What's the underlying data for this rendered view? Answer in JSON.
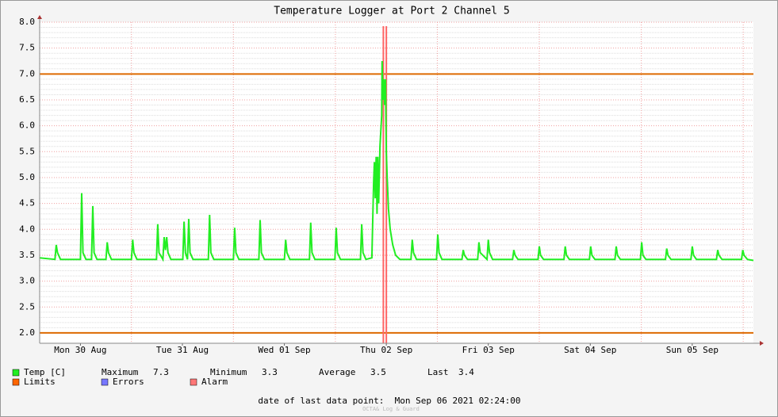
{
  "chart_data": {
    "type": "line",
    "title": "Temperature Logger at Port 2 Channel 5",
    "x": [
      2.4,
      6.0,
      6.3,
      6.6,
      7.3,
      12.0,
      12.3,
      12.6,
      13.3,
      14.6,
      14.9,
      15.2,
      15.9,
      18.0,
      18.3,
      18.6,
      19.3,
      24.0,
      24.3,
      24.6,
      25.3,
      29.9,
      30.2,
      30.5,
      31.4,
      31.7,
      32.0,
      32.3,
      32.6,
      33.3,
      36.1,
      36.4,
      36.7,
      37.2,
      37.5,
      37.8,
      38.5,
      42.1,
      42.4,
      42.7,
      43.4,
      48.0,
      48.3,
      48.6,
      49.3,
      54.0,
      54.3,
      54.6,
      55.3,
      60.0,
      60.3,
      60.6,
      61.3,
      65.9,
      66.2,
      66.5,
      67.2,
      71.9,
      72.2,
      72.5,
      73.2,
      77.9,
      78.2,
      78.5,
      79.2,
      80.6,
      81.0,
      81.2,
      81.4,
      81.6,
      81.8,
      82.0,
      82.2,
      82.5,
      82.9,
      83.0,
      83.2,
      83.4,
      83.6,
      83.8,
      84.0,
      84.2,
      84.5,
      84.9,
      85.5,
      86.2,
      87.2,
      89.8,
      90.1,
      90.4,
      91.1,
      95.8,
      96.1,
      96.4,
      97.1,
      101.8,
      102.1,
      102.4,
      103.1,
      105.5,
      105.8,
      106.1,
      107.7,
      108.0,
      108.3,
      109.0,
      113.7,
      114.0,
      114.3,
      115.0,
      119.7,
      120.0,
      120.3,
      121.0,
      125.8,
      126.1,
      126.4,
      127.1,
      131.8,
      132.1,
      132.4,
      133.1,
      137.8,
      138.1,
      138.4,
      139.1,
      143.8,
      144.1,
      144.4,
      145.1,
      149.7,
      150.0,
      150.3,
      151.0,
      155.7,
      156.0,
      156.3,
      157.0,
      161.7,
      162.0,
      162.3,
      163.0,
      167.6,
      167.9,
      168.2,
      169.0,
      170.4
    ],
    "series": [
      {
        "name": "Temp [C]",
        "color": "#22ee22",
        "values": [
          3.45,
          3.42,
          3.7,
          3.55,
          3.42,
          3.42,
          4.7,
          3.55,
          3.42,
          3.42,
          4.45,
          3.55,
          3.42,
          3.42,
          3.75,
          3.55,
          3.42,
          3.42,
          3.8,
          3.55,
          3.42,
          3.42,
          4.1,
          3.55,
          3.42,
          3.85,
          3.6,
          3.85,
          3.55,
          3.42,
          3.42,
          4.15,
          3.55,
          3.42,
          4.2,
          3.55,
          3.42,
          3.42,
          4.28,
          3.55,
          3.42,
          3.42,
          4.03,
          3.55,
          3.42,
          3.42,
          4.18,
          3.55,
          3.42,
          3.42,
          3.8,
          3.55,
          3.42,
          3.42,
          4.13,
          3.55,
          3.42,
          3.42,
          4.03,
          3.55,
          3.42,
          3.42,
          4.1,
          3.55,
          3.42,
          3.45,
          4.9,
          5.3,
          4.6,
          5.4,
          4.3,
          5.4,
          4.5,
          5.6,
          6.2,
          7.25,
          6.5,
          6.9,
          6.4,
          6.9,
          5.5,
          5.0,
          4.4,
          4.0,
          3.7,
          3.5,
          3.42,
          3.42,
          3.8,
          3.55,
          3.42,
          3.42,
          3.9,
          3.55,
          3.42,
          3.42,
          3.6,
          3.5,
          3.42,
          3.42,
          3.75,
          3.55,
          3.42,
          3.8,
          3.55,
          3.42,
          3.42,
          3.6,
          3.5,
          3.42,
          3.42,
          3.67,
          3.5,
          3.42,
          3.42,
          3.67,
          3.5,
          3.42,
          3.42,
          3.67,
          3.5,
          3.42,
          3.42,
          3.67,
          3.5,
          3.42,
          3.42,
          3.75,
          3.5,
          3.42,
          3.42,
          3.63,
          3.5,
          3.42,
          3.42,
          3.67,
          3.5,
          3.42,
          3.42,
          3.6,
          3.5,
          3.42,
          3.42,
          3.6,
          3.5,
          3.42,
          3.4
        ]
      }
    ],
    "xlim": [
      2.4,
      170.4
    ],
    "xticks": [
      {
        "value": 12,
        "label": "Mon 30 Aug"
      },
      {
        "value": 36,
        "label": "Tue 31 Aug"
      },
      {
        "value": 60,
        "label": "Wed 01 Sep"
      },
      {
        "value": 84,
        "label": "Thu 02 Sep"
      },
      {
        "value": 108,
        "label": "Fri 03 Sep"
      },
      {
        "value": 132,
        "label": "Sat 04 Sep"
      },
      {
        "value": 156,
        "label": "Sun 05 Sep"
      }
    ],
    "xgrid": [
      24,
      48,
      72,
      96,
      120,
      144,
      168
    ],
    "ylim": [
      1.8,
      8.0
    ],
    "yticks": [
      {
        "value": 2,
        "label": "2.0"
      },
      {
        "value": 2.5,
        "label": "2.5"
      },
      {
        "value": 3,
        "label": "3.0"
      },
      {
        "value": 3.5,
        "label": "3.5"
      },
      {
        "value": 4,
        "label": "4.0"
      },
      {
        "value": 4.5,
        "label": "4.5"
      },
      {
        "value": 5,
        "label": "5.0"
      },
      {
        "value": 5.5,
        "label": "5.5"
      },
      {
        "value": 6,
        "label": "6.0"
      },
      {
        "value": 6.5,
        "label": "6.5"
      },
      {
        "value": 7,
        "label": "7.0"
      },
      {
        "value": 7.5,
        "label": "7.5"
      },
      {
        "value": 8,
        "label": "8.0"
      }
    ],
    "limits": [
      2.0,
      7.0
    ],
    "limits_color": "#dd6a00",
    "alarm_x": [
      83.3,
      84.0
    ],
    "alarm_color": "#ff6666",
    "grid": true,
    "stats": [
      {
        "label": "Maximum",
        "value": 7.3
      },
      {
        "label": "Minimum",
        "value": 3.3
      },
      {
        "label": "Average",
        "value": 3.5
      },
      {
        "label": "Last",
        "value": 3.4
      }
    ],
    "legend": [
      {
        "name": "Limits",
        "color": "#ff6600"
      },
      {
        "name": "Errors",
        "color": "#7777ff"
      },
      {
        "name": "Alarm",
        "color": "#ff7777"
      }
    ],
    "footer": "date of last data point:  Mon Sep 06 2021 02:24:00",
    "watermark": "OCTA& Log & Guard"
  }
}
